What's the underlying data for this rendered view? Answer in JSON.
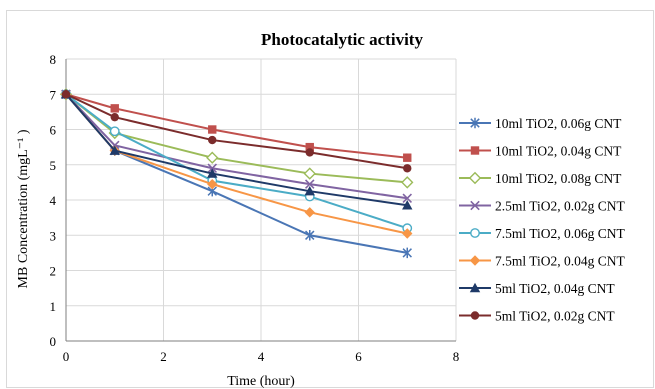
{
  "chart_data": {
    "type": "line",
    "title": "Photocatalytic activity",
    "xlabel": "Time (hour)",
    "ylabel": "MB Concentration (mgL⁻¹ )",
    "xlim": [
      0,
      8
    ],
    "ylim": [
      0,
      8
    ],
    "xticks": [
      "0",
      "2",
      "4",
      "6",
      "8"
    ],
    "yticks": [
      "0",
      "1",
      "2",
      "3",
      "4",
      "5",
      "6",
      "7",
      "8"
    ],
    "grid": true,
    "legend_position": "right",
    "x": [
      0,
      1,
      3,
      5,
      7
    ],
    "series": [
      {
        "name": "10ml TiO2, 0.06g CNT",
        "color": "#4a76b5",
        "marker": "asterisk",
        "values": [
          7,
          5.4,
          4.25,
          3.0,
          2.5
        ]
      },
      {
        "name": "10ml TiO2, 0.04g CNT",
        "color": "#c0504d",
        "marker": "square",
        "values": [
          7,
          6.6,
          6.0,
          5.5,
          5.2
        ]
      },
      {
        "name": "10ml TiO2, 0.08g CNT",
        "color": "#9bbb59",
        "marker": "diamond-open",
        "values": [
          7,
          5.9,
          5.2,
          4.75,
          4.5
        ]
      },
      {
        "name": "2.5ml TiO2, 0.02g CNT",
        "color": "#8064a2",
        "marker": "x",
        "values": [
          7,
          5.55,
          4.9,
          4.45,
          4.05
        ]
      },
      {
        "name": "7.5ml TiO2, 0.06g CNT",
        "color": "#4bacc6",
        "marker": "circle-open",
        "values": [
          7,
          5.95,
          4.55,
          4.1,
          3.2
        ]
      },
      {
        "name": "7.5ml TiO2, 0.04g CNT",
        "color": "#f79646",
        "marker": "diamond",
        "values": [
          7,
          5.4,
          4.45,
          3.65,
          3.05
        ]
      },
      {
        "name": "5ml TiO2, 0.04g CNT",
        "color": "#1f3a68",
        "marker": "triangle",
        "values": [
          7,
          5.4,
          4.75,
          4.25,
          3.85
        ]
      },
      {
        "name": "5ml TiO2, 0.02g CNT",
        "color": "#7b2c2c",
        "marker": "circle",
        "values": [
          7,
          6.35,
          5.7,
          5.35,
          4.9
        ]
      }
    ]
  }
}
